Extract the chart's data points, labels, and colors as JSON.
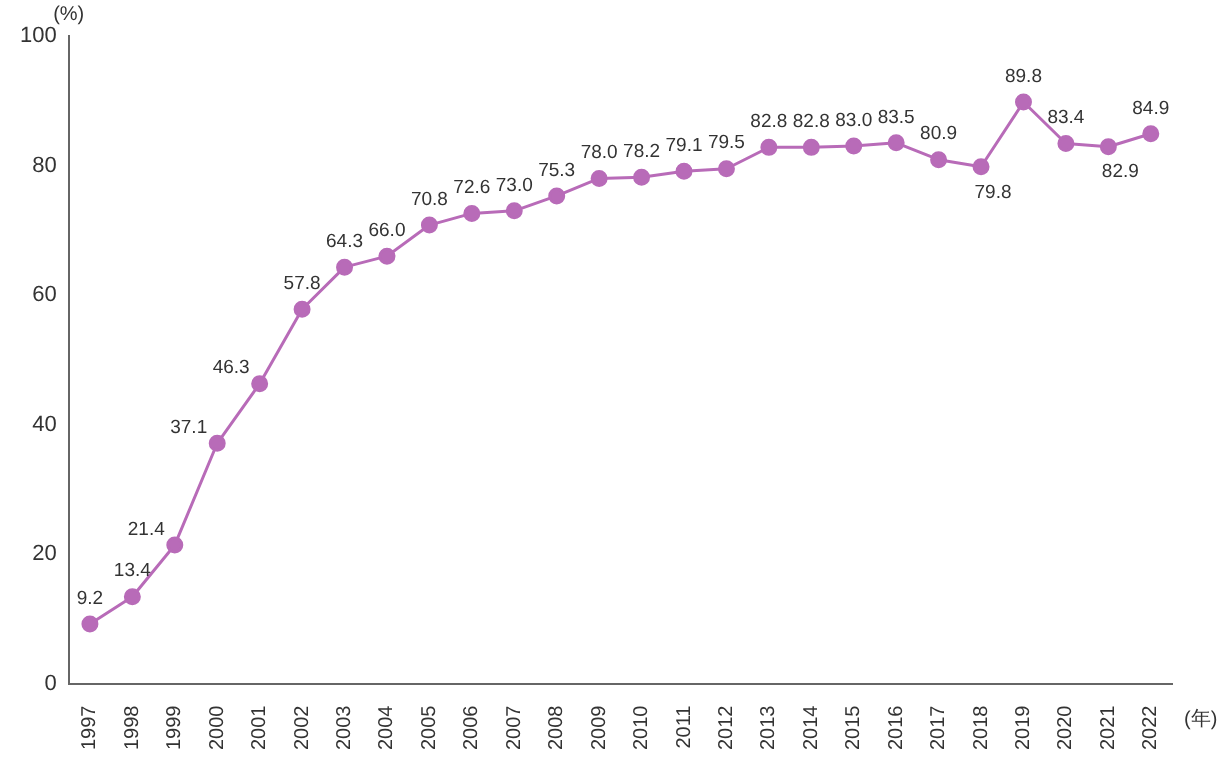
{
  "chart_data": {
    "type": "line",
    "xlabel": "(年)",
    "ylabel": "(%)",
    "categories": [
      "1997",
      "1998",
      "1999",
      "2000",
      "2001",
      "2002",
      "2003",
      "2004",
      "2005",
      "2006",
      "2007",
      "2008",
      "2009",
      "2010",
      "2011",
      "2012",
      "2013",
      "2014",
      "2015",
      "2016",
      "2017",
      "2018",
      "2019",
      "2020",
      "2021",
      "2022"
    ],
    "series": [
      {
        "color": "#b86bb8",
        "values": [
          9.2,
          13.4,
          21.4,
          37.1,
          46.3,
          57.8,
          64.3,
          66.0,
          70.8,
          72.6,
          73.0,
          75.3,
          78.0,
          78.2,
          79.1,
          79.5,
          82.8,
          82.8,
          83.0,
          83.5,
          80.9,
          79.8,
          89.8,
          83.4,
          82.9,
          84.9
        ],
        "value_labels": [
          "9.2",
          "13.4",
          "21.4",
          "37.1",
          "46.3",
          "57.8",
          "64.3",
          "66.0",
          "70.8",
          "72.6",
          "73.0",
          "75.3",
          "78.0",
          "78.2",
          "79.1",
          "79.5",
          "82.8",
          "82.8",
          "83.0",
          "83.5",
          "80.9",
          "79.8",
          "89.8",
          "83.4",
          "82.9",
          "84.9"
        ]
      }
    ],
    "ylim": [
      0,
      100
    ],
    "yticks": [
      0,
      20,
      40,
      60,
      80,
      100
    ],
    "grid": false,
    "legend": false,
    "marker": "circle",
    "line_style": "solid"
  }
}
